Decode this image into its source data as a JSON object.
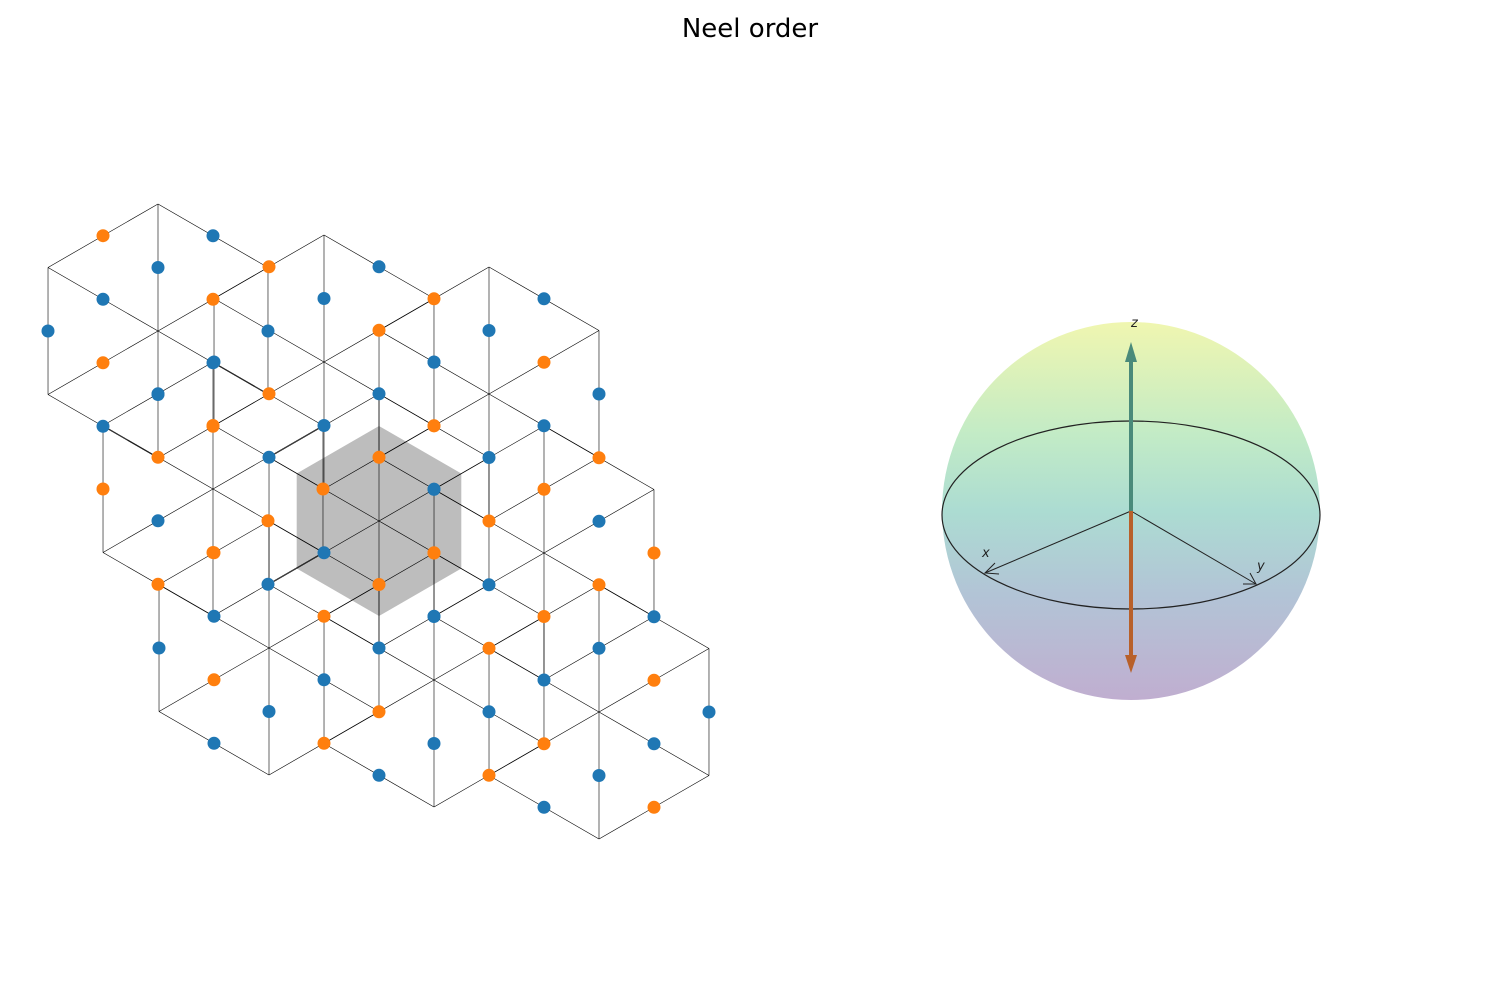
{
  "title": "Neel order",
  "lattice": {
    "sublattice_a_color": "#1f77b4",
    "sublattice_b_color": "#ff7f0e",
    "line_color": "#000000",
    "highlight_fill": "#bdbdbd"
  },
  "bloch_sphere": {
    "axis_labels": {
      "x": "x",
      "y": "y",
      "z": "z"
    },
    "spin_up_color": "#4a8a7a",
    "spin_down_color": "#b8602a",
    "sphere_top_color": "#eef4b0",
    "sphere_mid_color": "#a8dccc",
    "sphere_bottom_color": "#bca8cc"
  }
}
